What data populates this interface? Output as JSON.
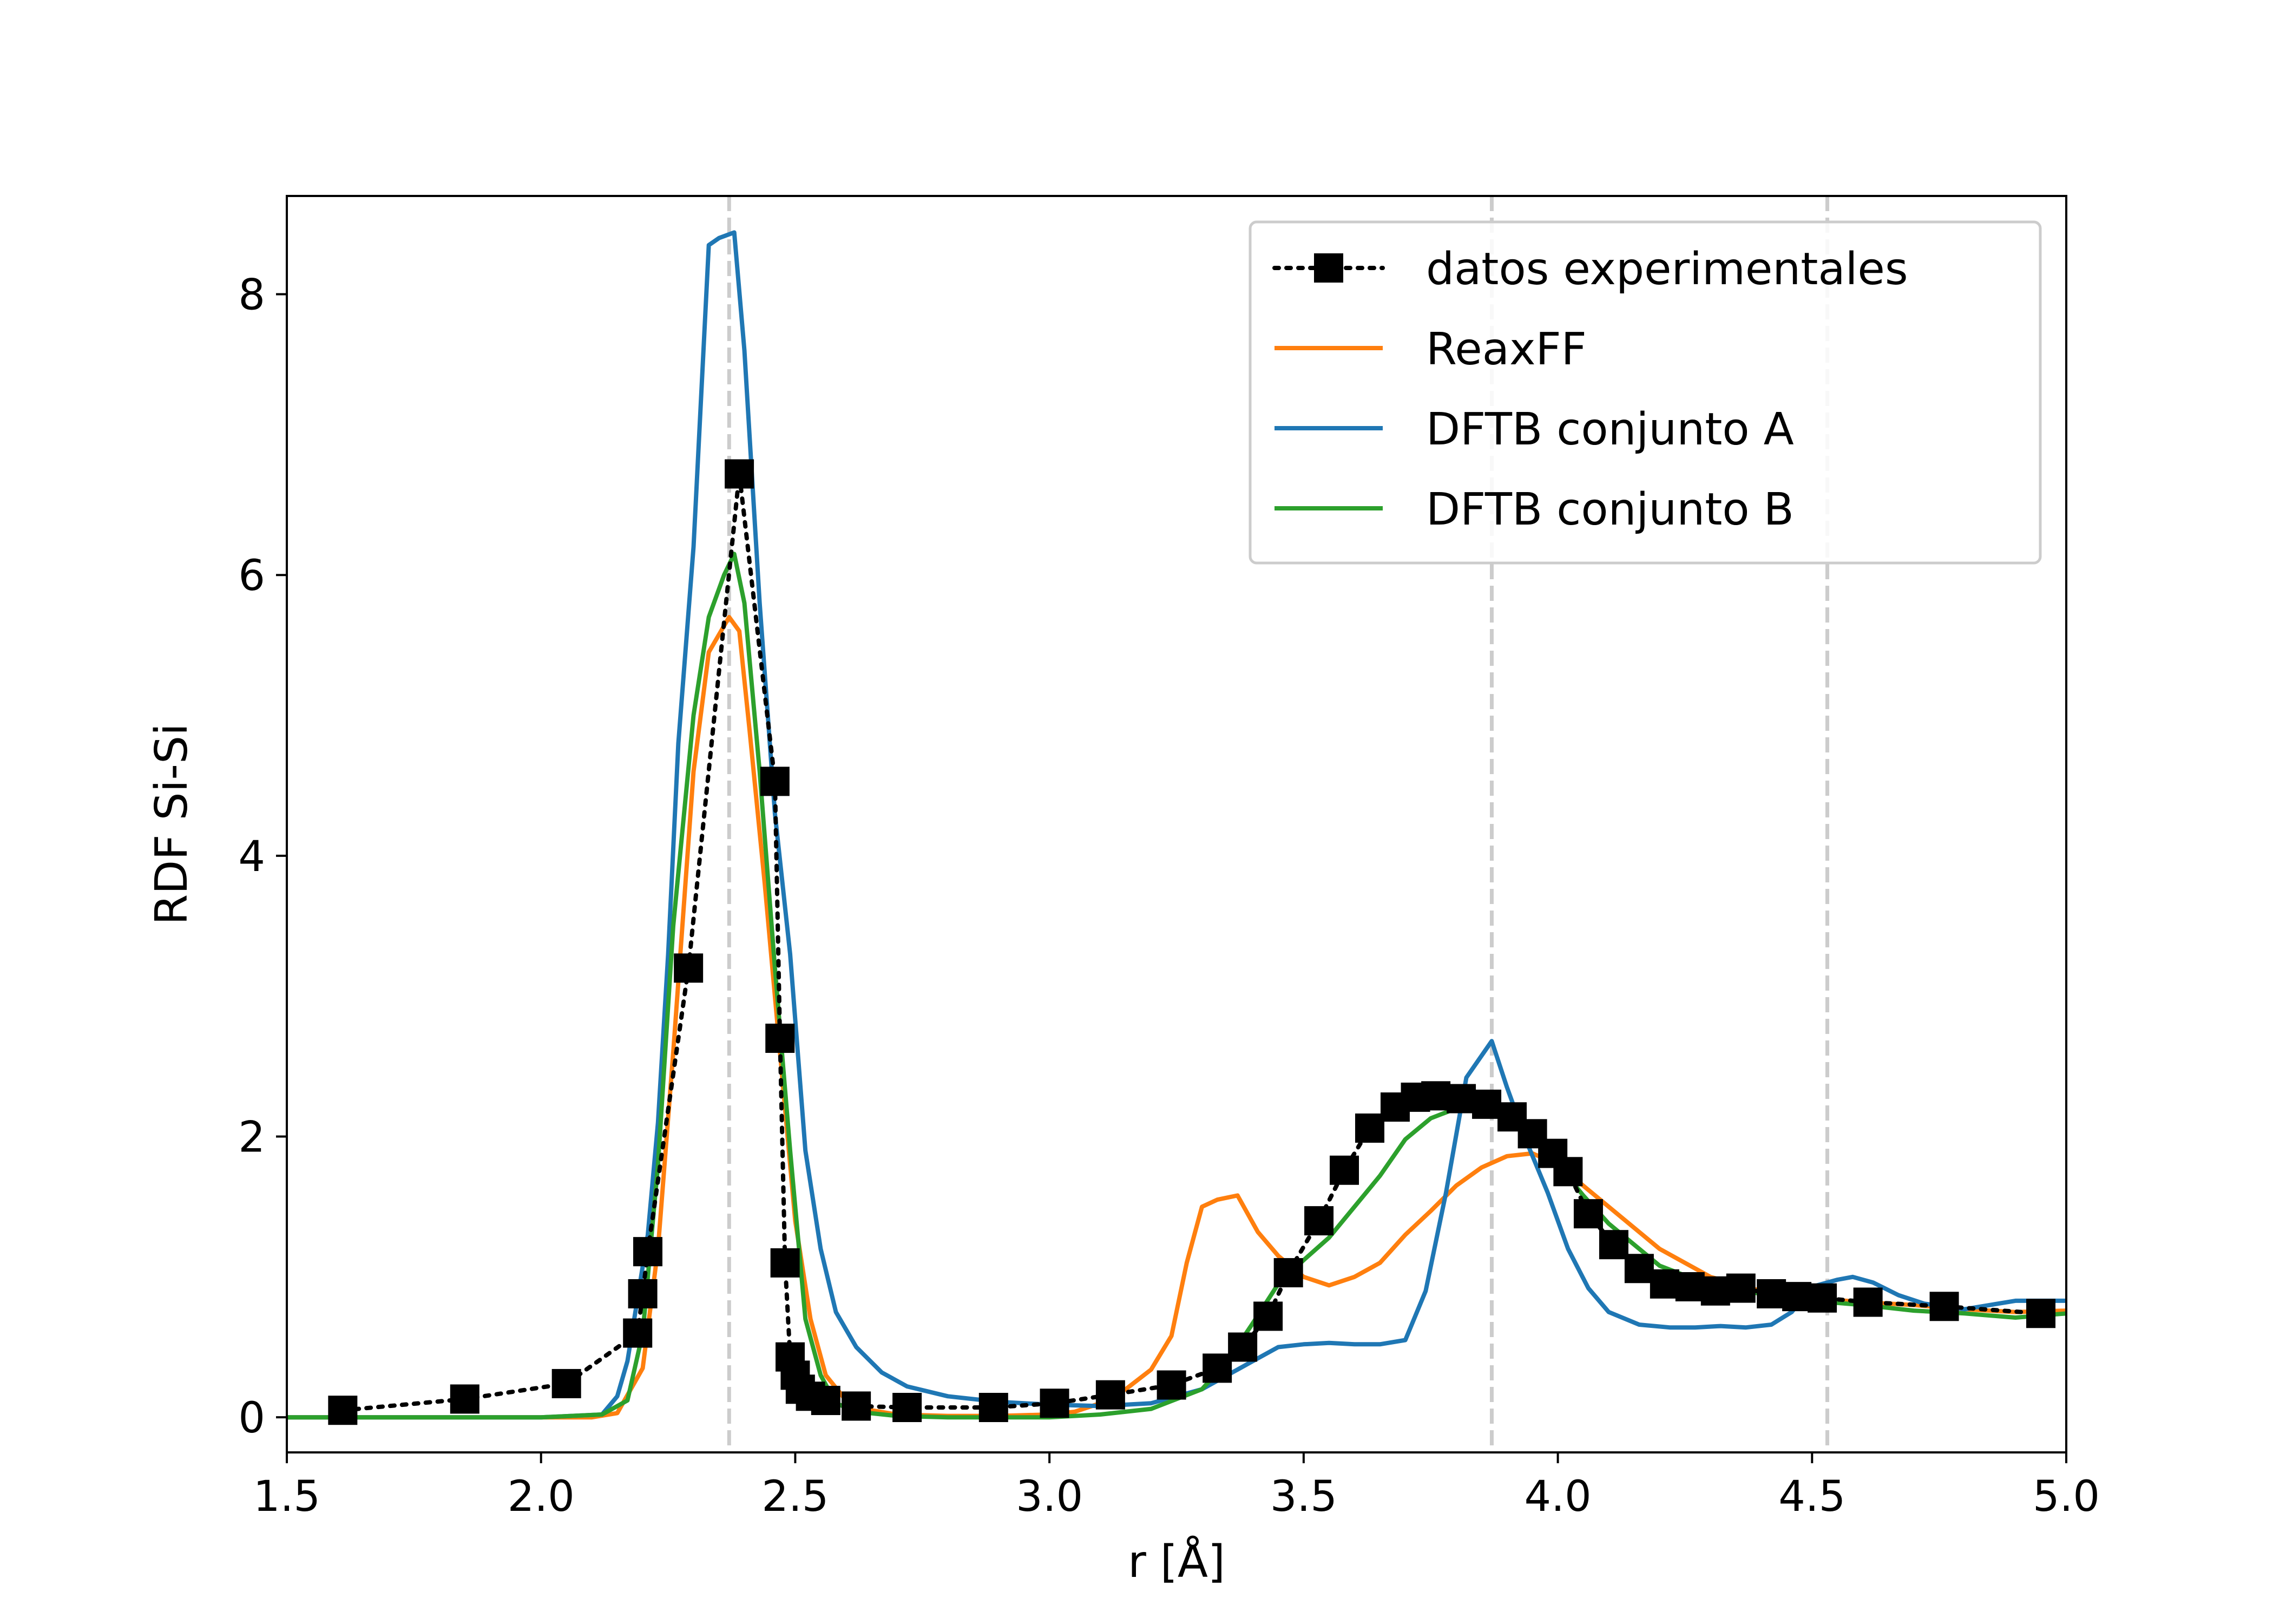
{
  "chart_data": {
    "type": "line",
    "title": "",
    "xlabel": "r [Å]",
    "ylabel": "RDF Si-Si",
    "xlim": [
      1.5,
      5.0
    ],
    "ylim": [
      -0.25,
      8.7
    ],
    "xticks": [
      "1.5",
      "2.0",
      "2.5",
      "3.0",
      "3.5",
      "4.0",
      "4.5",
      "5.0"
    ],
    "yticks": [
      "0",
      "2",
      "4",
      "6",
      "8"
    ],
    "grid": false,
    "legend_position": "top-right",
    "reference_lines_x": [
      2.37,
      3.87,
      4.53
    ],
    "series": [
      {
        "name": "datos experimentales",
        "style": "dotted-square-markers",
        "color": "#000000",
        "x": [
          1.61,
          1.85,
          2.05,
          2.19,
          2.2,
          2.21,
          2.29,
          2.39,
          2.46,
          2.47,
          2.48,
          2.49,
          2.5,
          2.51,
          2.53,
          2.56,
          2.62,
          2.72,
          2.89,
          3.01,
          3.12,
          3.24,
          3.33,
          3.38,
          3.43,
          3.47,
          3.53,
          3.58,
          3.63,
          3.68,
          3.72,
          3.76,
          3.81,
          3.86,
          3.91,
          3.95,
          3.99,
          4.02,
          4.06,
          4.11,
          4.16,
          4.21,
          4.26,
          4.31,
          4.36,
          4.42,
          4.47,
          4.52,
          4.61,
          4.76,
          4.95
        ],
        "y": [
          0.05,
          0.13,
          0.24,
          0.6,
          0.88,
          1.18,
          3.2,
          6.72,
          4.53,
          2.7,
          1.1,
          0.43,
          0.3,
          0.2,
          0.15,
          0.12,
          0.08,
          0.07,
          0.07,
          0.1,
          0.16,
          0.23,
          0.35,
          0.5,
          0.72,
          1.03,
          1.4,
          1.76,
          2.06,
          2.21,
          2.28,
          2.29,
          2.27,
          2.23,
          2.14,
          2.02,
          1.88,
          1.75,
          1.45,
          1.23,
          1.06,
          0.95,
          0.93,
          0.9,
          0.92,
          0.88,
          0.86,
          0.85,
          0.82,
          0.79,
          0.74
        ]
      },
      {
        "name": "ReaxFF",
        "style": "line",
        "color": "#ff7f0e",
        "x": [
          1.5,
          1.8,
          2.0,
          2.1,
          2.15,
          2.2,
          2.23,
          2.26,
          2.3,
          2.33,
          2.37,
          2.39,
          2.41,
          2.44,
          2.47,
          2.5,
          2.53,
          2.56,
          2.6,
          2.65,
          2.7,
          2.8,
          2.9,
          3.0,
          3.05,
          3.1,
          3.15,
          3.2,
          3.24,
          3.27,
          3.3,
          3.33,
          3.37,
          3.41,
          3.45,
          3.5,
          3.55,
          3.6,
          3.65,
          3.7,
          3.75,
          3.8,
          3.85,
          3.9,
          3.95,
          4.0,
          4.1,
          4.2,
          4.3,
          4.4,
          4.5,
          4.6,
          4.7,
          4.8,
          4.9,
          5.0
        ],
        "y": [
          0.0,
          0.0,
          0.0,
          0.0,
          0.03,
          0.35,
          1.2,
          2.6,
          4.6,
          5.45,
          5.7,
          5.6,
          4.9,
          3.8,
          2.6,
          1.4,
          0.7,
          0.3,
          0.12,
          0.05,
          0.02,
          0.01,
          0.01,
          0.02,
          0.04,
          0.1,
          0.2,
          0.34,
          0.58,
          1.1,
          1.5,
          1.55,
          1.58,
          1.32,
          1.15,
          1.0,
          0.94,
          1.0,
          1.1,
          1.3,
          1.47,
          1.65,
          1.78,
          1.86,
          1.88,
          1.8,
          1.5,
          1.2,
          1.0,
          0.9,
          0.85,
          0.82,
          0.8,
          0.77,
          0.75,
          0.76
        ]
      },
      {
        "name": "DFTB conjunto A",
        "style": "line",
        "color": "#1f77b4",
        "x": [
          1.5,
          1.8,
          2.0,
          2.12,
          2.15,
          2.17,
          2.19,
          2.21,
          2.23,
          2.25,
          2.27,
          2.3,
          2.33,
          2.35,
          2.38,
          2.4,
          2.43,
          2.46,
          2.49,
          2.52,
          2.55,
          2.58,
          2.62,
          2.67,
          2.72,
          2.8,
          2.9,
          3.0,
          3.1,
          3.2,
          3.3,
          3.4,
          3.45,
          3.5,
          3.55,
          3.6,
          3.65,
          3.7,
          3.74,
          3.78,
          3.82,
          3.87,
          3.9,
          3.94,
          3.98,
          4.02,
          4.06,
          4.1,
          4.16,
          4.22,
          4.27,
          4.32,
          4.37,
          4.42,
          4.46,
          4.5,
          4.55,
          4.58,
          4.62,
          4.67,
          4.72,
          4.8,
          4.9,
          5.0
        ],
        "y": [
          0.0,
          0.0,
          0.0,
          0.02,
          0.15,
          0.4,
          0.85,
          1.3,
          2.1,
          3.3,
          4.8,
          6.2,
          8.35,
          8.4,
          8.44,
          7.6,
          5.8,
          4.3,
          3.3,
          1.9,
          1.2,
          0.75,
          0.5,
          0.32,
          0.22,
          0.15,
          0.11,
          0.09,
          0.08,
          0.1,
          0.2,
          0.4,
          0.5,
          0.52,
          0.53,
          0.52,
          0.52,
          0.55,
          0.9,
          1.6,
          2.42,
          2.68,
          2.35,
          1.95,
          1.6,
          1.2,
          0.92,
          0.75,
          0.66,
          0.64,
          0.64,
          0.65,
          0.64,
          0.66,
          0.75,
          0.93,
          0.98,
          1.0,
          0.96,
          0.87,
          0.81,
          0.77,
          0.83,
          0.83
        ]
      },
      {
        "name": "DFTB conjunto B",
        "style": "line",
        "color": "#2ca02c",
        "x": [
          1.5,
          1.8,
          2.0,
          2.12,
          2.17,
          2.2,
          2.23,
          2.26,
          2.3,
          2.33,
          2.36,
          2.38,
          2.4,
          2.43,
          2.46,
          2.49,
          2.52,
          2.55,
          2.58,
          2.62,
          2.7,
          2.8,
          2.9,
          3.0,
          3.1,
          3.2,
          3.3,
          3.35,
          3.4,
          3.45,
          3.5,
          3.55,
          3.6,
          3.65,
          3.7,
          3.75,
          3.8,
          3.85,
          3.9,
          3.95,
          4.0,
          4.05,
          4.1,
          4.2,
          4.3,
          4.4,
          4.5,
          4.6,
          4.7,
          4.8,
          4.9,
          5.0
        ],
        "y": [
          0.0,
          0.0,
          0.0,
          0.02,
          0.12,
          0.6,
          1.8,
          3.5,
          5.0,
          5.7,
          6.0,
          6.15,
          5.8,
          4.6,
          3.2,
          1.9,
          0.7,
          0.3,
          0.1,
          0.04,
          0.01,
          0.0,
          0.0,
          0.0,
          0.02,
          0.06,
          0.2,
          0.4,
          0.67,
          0.95,
          1.12,
          1.28,
          1.5,
          1.72,
          1.98,
          2.13,
          2.2,
          2.18,
          2.12,
          1.98,
          1.8,
          1.58,
          1.38,
          1.08,
          0.94,
          0.88,
          0.83,
          0.8,
          0.76,
          0.74,
          0.71,
          0.74
        ]
      }
    ]
  }
}
